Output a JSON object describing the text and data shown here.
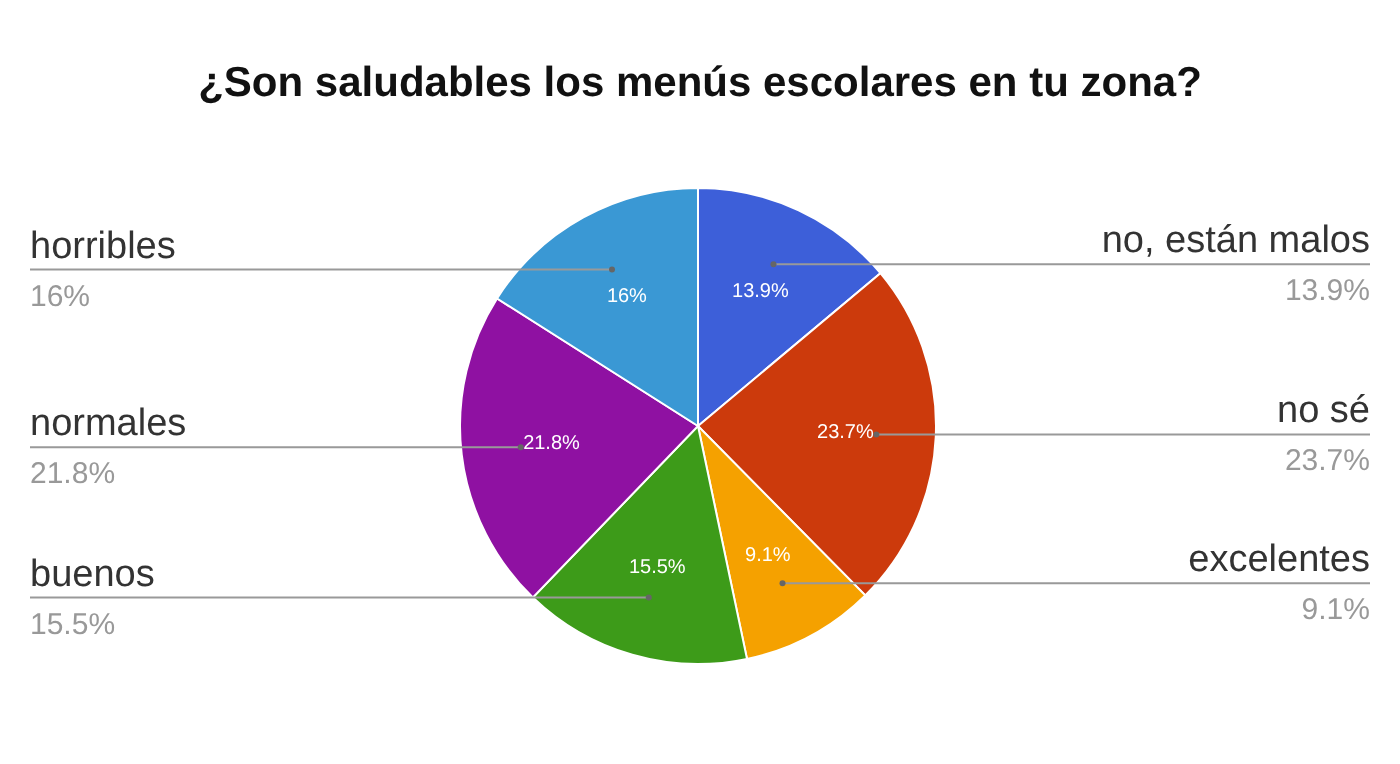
{
  "chart_data": {
    "type": "pie",
    "title": "¿Son saludables los menús escolares en tu zona?",
    "categories": [
      "no, están malos",
      "no sé",
      "excelentes",
      "buenos",
      "normales",
      "horribles"
    ],
    "values": [
      13.9,
      23.7,
      9.1,
      15.5,
      21.8,
      16
    ],
    "value_labels": [
      "13.9%",
      "23.7%",
      "9.1%",
      "15.5%",
      "21.8%",
      "16%"
    ],
    "colors": [
      "#3d5fd9",
      "#cc3a0c",
      "#f5a100",
      "#3d9b19",
      "#8f11a2",
      "#3a98d4"
    ]
  }
}
